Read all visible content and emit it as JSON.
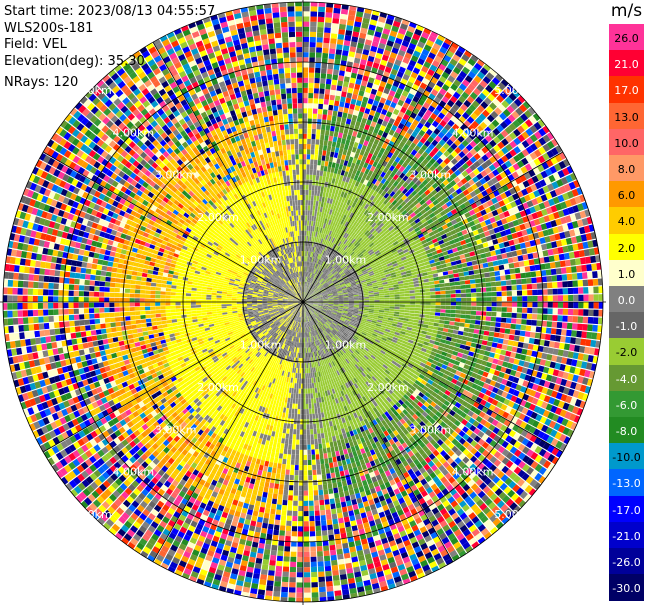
{
  "info": {
    "start_time": "Start time: 2023/08/13 04:55:57",
    "instrument": "WLS200s-181",
    "field": "Field: VEL",
    "elevation": "Elevation(deg): 35.30",
    "nrays": "NRays: 120"
  },
  "chart_data": {
    "type": "heatmap",
    "projection": "polar-ppi",
    "nrays": 120,
    "range_rings_km": [
      1.0,
      2.0,
      3.0,
      4.0,
      5.0
    ],
    "ring_labels": [
      "1.00km",
      "2.00km",
      "3.00km",
      "4.00km",
      "5.00km"
    ],
    "max_range_km": 5.0,
    "colorbar": {
      "unit": "m/s",
      "levels": [
        "26.0",
        "21.0",
        "17.0",
        "13.0",
        "10.0",
        "8.0",
        "6.0",
        "4.0",
        "2.0",
        "1.0",
        "0.0",
        "-1.0",
        "-2.0",
        "-4.0",
        "-6.0",
        "-8.0",
        "-10.0",
        "-13.0",
        "-17.0",
        "-21.0",
        "-26.0",
        "-30.0"
      ],
      "colors": [
        "#ff3399",
        "#ff0033",
        "#ff3300",
        "#ff6633",
        "#ff6666",
        "#ff9966",
        "#ff9900",
        "#ffcc00",
        "#ffff00",
        "#ffffcc",
        "#808080",
        "#666666",
        "#99cc33",
        "#669933",
        "#339933",
        "#228b22",
        "#0099cc",
        "#0066ff",
        "#0000ff",
        "#0000cc",
        "#000099",
        "#000066"
      ]
    },
    "field_description_by_range": [
      {
        "range_km": [
          0.0,
          1.0
        ],
        "west": "gray",
        "east": "gray-green"
      },
      {
        "range_km": [
          1.0,
          2.2
        ],
        "west": "yellow",
        "east": "olive-green"
      },
      {
        "range_km": [
          2.2,
          3.2
        ],
        "west": "orange",
        "east": "green"
      },
      {
        "range_km": [
          3.2,
          5.0
        ],
        "west": "noise",
        "east": "noise"
      }
    ]
  }
}
